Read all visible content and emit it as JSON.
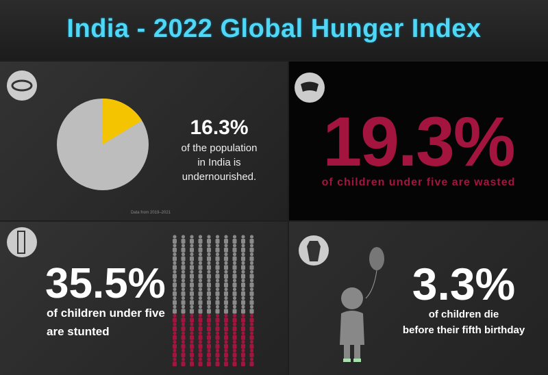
{
  "title": "India - 2022 Global Hunger Index",
  "chart_data": {
    "type": "pie",
    "values": [
      16.3
    ],
    "value_labels": [
      "16.3%"
    ],
    "colors": [
      "#f5c400"
    ],
    "rest_color": "#bdbdbd",
    "caption": "of the population\nin India is\nundernourished.",
    "note": "Data from 2019–2021"
  },
  "panels": [
    {
      "value": "19.3%",
      "caption": "of children under five are wasted"
    },
    {
      "value": "35.5%",
      "caption": "of children under five\nare stunted"
    },
    {
      "value": "3.3%",
      "caption": "of children die\nbefore their fifth birthday"
    }
  ]
}
